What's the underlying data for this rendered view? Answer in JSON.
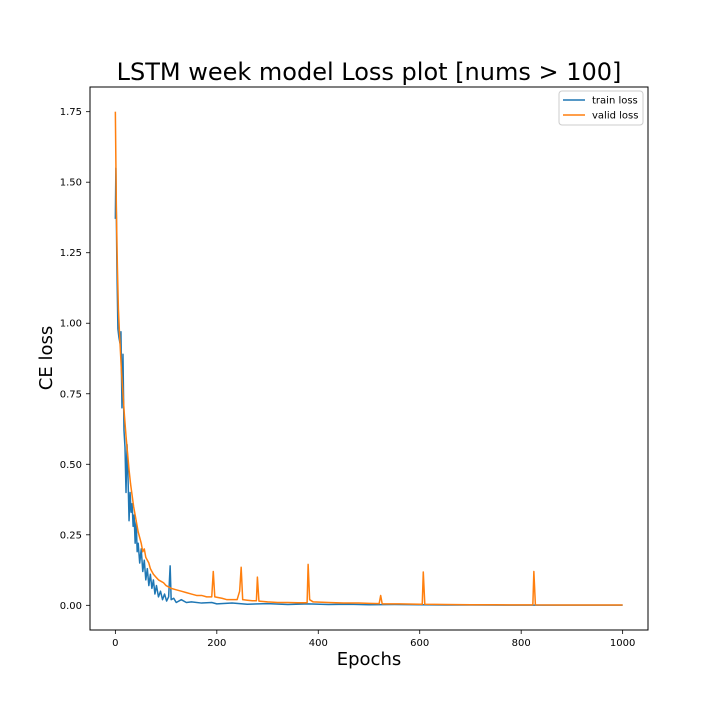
{
  "chart_data": {
    "type": "line",
    "title": "LSTM week model Loss plot [nums > 100]",
    "xlabel": "Epochs",
    "ylabel": "CE loss",
    "xlim": [
      -50,
      1050
    ],
    "ylim": [
      -0.0875,
      1.8375
    ],
    "xticks": [
      0,
      200,
      400,
      600,
      800,
      1000
    ],
    "yticks": [
      0.0,
      0.25,
      0.5,
      0.75,
      1.0,
      1.25,
      1.5,
      1.75
    ],
    "grid": false,
    "legend_position": "top-right",
    "series": [
      {
        "name": "train loss",
        "color": "#1f77b4",
        "points": [
          [
            0,
            1.37
          ],
          [
            1,
            1.55
          ],
          [
            3,
            1.2
          ],
          [
            5,
            0.98
          ],
          [
            7,
            0.95
          ],
          [
            9,
            0.93
          ],
          [
            11,
            0.97
          ],
          [
            13,
            0.7
          ],
          [
            15,
            0.89
          ],
          [
            17,
            0.62
          ],
          [
            19,
            0.56
          ],
          [
            21,
            0.4
          ],
          [
            23,
            0.57
          ],
          [
            25,
            0.45
          ],
          [
            27,
            0.3
          ],
          [
            29,
            0.4
          ],
          [
            31,
            0.33
          ],
          [
            33,
            0.36
          ],
          [
            35,
            0.28
          ],
          [
            37,
            0.32
          ],
          [
            39,
            0.22
          ],
          [
            41,
            0.3
          ],
          [
            43,
            0.19
          ],
          [
            45,
            0.22
          ],
          [
            48,
            0.15
          ],
          [
            51,
            0.2
          ],
          [
            54,
            0.12
          ],
          [
            57,
            0.16
          ],
          [
            60,
            0.09
          ],
          [
            63,
            0.13
          ],
          [
            66,
            0.07
          ],
          [
            69,
            0.11
          ],
          [
            72,
            0.06
          ],
          [
            75,
            0.09
          ],
          [
            78,
            0.04
          ],
          [
            81,
            0.07
          ],
          [
            85,
            0.03
          ],
          [
            89,
            0.05
          ],
          [
            93,
            0.02
          ],
          [
            97,
            0.04
          ],
          [
            101,
            0.015
          ],
          [
            105,
            0.03
          ],
          [
            108,
            0.14
          ],
          [
            110,
            0.02
          ],
          [
            115,
            0.025
          ],
          [
            120,
            0.01
          ],
          [
            130,
            0.02
          ],
          [
            140,
            0.01
          ],
          [
            150,
            0.012
          ],
          [
            170,
            0.008
          ],
          [
            190,
            0.01
          ],
          [
            200,
            0.005
          ],
          [
            230,
            0.008
          ],
          [
            260,
            0.004
          ],
          [
            300,
            0.006
          ],
          [
            340,
            0.003
          ],
          [
            380,
            0.005
          ],
          [
            420,
            0.003
          ],
          [
            460,
            0.004
          ],
          [
            500,
            0.002
          ],
          [
            550,
            0.003
          ],
          [
            600,
            0.002
          ],
          [
            650,
            0.001
          ],
          [
            700,
            0.001
          ],
          [
            800,
            0.0008
          ],
          [
            900,
            0.0006
          ],
          [
            1000,
            0.0005
          ]
        ]
      },
      {
        "name": "valid loss",
        "color": "#ff7f0e",
        "points": [
          [
            0,
            1.75
          ],
          [
            2,
            1.4
          ],
          [
            4,
            1.2
          ],
          [
            6,
            1.05
          ],
          [
            8,
            0.97
          ],
          [
            10,
            0.9
          ],
          [
            12,
            0.83
          ],
          [
            15,
            0.75
          ],
          [
            18,
            0.67
          ],
          [
            21,
            0.6
          ],
          [
            24,
            0.54
          ],
          [
            27,
            0.48
          ],
          [
            30,
            0.43
          ],
          [
            33,
            0.39
          ],
          [
            36,
            0.35
          ],
          [
            39,
            0.32
          ],
          [
            42,
            0.29
          ],
          [
            45,
            0.26
          ],
          [
            48,
            0.24
          ],
          [
            51,
            0.22
          ],
          [
            54,
            0.19
          ],
          [
            57,
            0.2
          ],
          [
            60,
            0.17
          ],
          [
            63,
            0.16
          ],
          [
            66,
            0.15
          ],
          [
            69,
            0.13
          ],
          [
            72,
            0.12
          ],
          [
            75,
            0.11
          ],
          [
            80,
            0.1
          ],
          [
            85,
            0.09
          ],
          [
            90,
            0.085
          ],
          [
            95,
            0.08
          ],
          [
            100,
            0.07
          ],
          [
            110,
            0.06
          ],
          [
            120,
            0.055
          ],
          [
            130,
            0.05
          ],
          [
            140,
            0.045
          ],
          [
            150,
            0.04
          ],
          [
            160,
            0.035
          ],
          [
            170,
            0.035
          ],
          [
            180,
            0.03
          ],
          [
            190,
            0.03
          ],
          [
            193,
            0.12
          ],
          [
            196,
            0.03
          ],
          [
            210,
            0.025
          ],
          [
            220,
            0.02
          ],
          [
            230,
            0.02
          ],
          [
            240,
            0.02
          ],
          [
            245,
            0.05
          ],
          [
            248,
            0.135
          ],
          [
            251,
            0.02
          ],
          [
            260,
            0.018
          ],
          [
            270,
            0.016
          ],
          [
            278,
            0.016
          ],
          [
            280,
            0.1
          ],
          [
            283,
            0.015
          ],
          [
            300,
            0.012
          ],
          [
            320,
            0.01
          ],
          [
            340,
            0.01
          ],
          [
            360,
            0.009
          ],
          [
            378,
            0.009
          ],
          [
            380,
            0.145
          ],
          [
            383,
            0.02
          ],
          [
            390,
            0.012
          ],
          [
            420,
            0.01
          ],
          [
            450,
            0.008
          ],
          [
            480,
            0.008
          ],
          [
            500,
            0.007
          ],
          [
            520,
            0.006
          ],
          [
            523,
            0.035
          ],
          [
            526,
            0.005
          ],
          [
            560,
            0.005
          ],
          [
            600,
            0.004
          ],
          [
            605,
            0.004
          ],
          [
            607,
            0.118
          ],
          [
            610,
            0.004
          ],
          [
            650,
            0.003
          ],
          [
            700,
            0.002
          ],
          [
            750,
            0.002
          ],
          [
            800,
            0.0015
          ],
          [
            823,
            0.0015
          ],
          [
            825,
            0.12
          ],
          [
            828,
            0.0015
          ],
          [
            880,
            0.001
          ],
          [
            940,
            0.001
          ],
          [
            1000,
            0.001
          ]
        ]
      }
    ]
  }
}
